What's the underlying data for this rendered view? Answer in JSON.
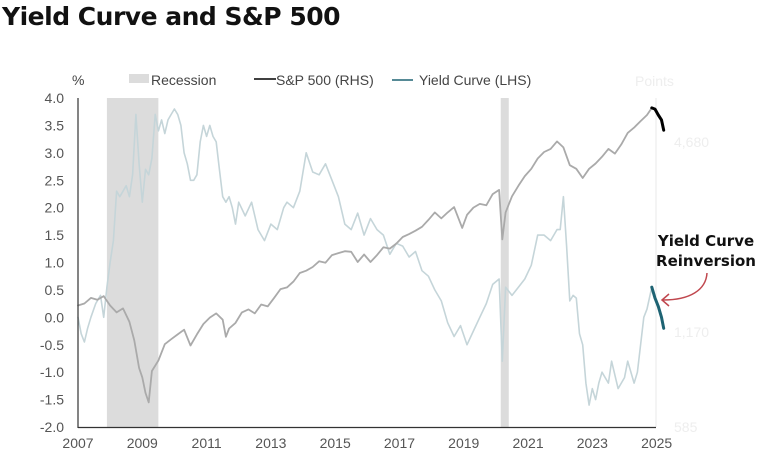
{
  "chart_data": {
    "type": "line",
    "title": "Yield Curve and S&P 500",
    "left_axis_unit": "%",
    "right_axis_unit": "Points",
    "ylim": [
      -2.0,
      4.0
    ],
    "yticks": [
      "4.0",
      "3.5",
      "3.0",
      "2.5",
      "2.0",
      "1.5",
      "1.0",
      "0.5",
      "0.0",
      "-0.5",
      "-1.0",
      "-1.5",
      "-2.0"
    ],
    "ytick_values": [
      4.0,
      3.5,
      3.0,
      2.5,
      2.0,
      1.5,
      1.0,
      0.5,
      0.0,
      -0.5,
      -1.0,
      -1.5,
      -2.0
    ],
    "y2ticks": [
      "4,680",
      "1,170",
      "585"
    ],
    "y2tick_values": [
      4680,
      1170,
      585
    ],
    "y2scale": "log",
    "xlim": [
      2007,
      2025.3
    ],
    "xticks": [
      "2007",
      "2009",
      "2011",
      "2013",
      "2015",
      "2017",
      "2019",
      "2021",
      "2023",
      "2025"
    ],
    "xtick_values": [
      2007,
      2009,
      2011,
      2013,
      2015,
      2017,
      2019,
      2021,
      2023,
      2025
    ],
    "legend": {
      "placement": "top",
      "recession": "Recession",
      "sp500": "S&P 500 (RHS)",
      "yield": "Yield Curve (LHS)"
    },
    "colors": {
      "recession": "#dcdcdc",
      "sp500_hist": "#aaaaaa",
      "sp500_recent": "#000000",
      "yield_hist": "#c5d5d9",
      "yield_recent": "#1e6373",
      "annotation_arrow": "#c0474e",
      "axis": "#333333"
    },
    "recessions": [
      [
        2007.9,
        2009.5
      ],
      [
        2020.15,
        2020.4
      ]
    ],
    "annotation": {
      "line1": "Yield Curve",
      "line2": "Reinversion"
    },
    "series": [
      {
        "name": "Yield Curve (LHS)",
        "axis": "left",
        "x": [
          2007.0,
          2007.1,
          2007.2,
          2007.3,
          2007.4,
          2007.55,
          2007.7,
          2007.8,
          2007.9,
          2008.0,
          2008.1,
          2008.2,
          2008.3,
          2008.4,
          2008.5,
          2008.6,
          2008.7,
          2008.8,
          2008.9,
          2009.0,
          2009.1,
          2009.2,
          2009.3,
          2009.4,
          2009.5,
          2009.6,
          2009.7,
          2009.8,
          2009.9,
          2010.0,
          2010.1,
          2010.2,
          2010.3,
          2010.4,
          2010.5,
          2010.6,
          2010.7,
          2010.8,
          2010.9,
          2011.0,
          2011.1,
          2011.2,
          2011.3,
          2011.4,
          2011.5,
          2011.6,
          2011.7,
          2011.8,
          2011.9,
          2012.0,
          2012.2,
          2012.4,
          2012.6,
          2012.8,
          2013.0,
          2013.2,
          2013.4,
          2013.5,
          2013.7,
          2013.9,
          2014.1,
          2014.3,
          2014.5,
          2014.7,
          2014.9,
          2015.1,
          2015.3,
          2015.5,
          2015.7,
          2015.9,
          2016.1,
          2016.3,
          2016.5,
          2016.7,
          2016.9,
          2017.1,
          2017.3,
          2017.5,
          2017.7,
          2017.9,
          2018.1,
          2018.3,
          2018.5,
          2018.7,
          2018.9,
          2019.1,
          2019.3,
          2019.5,
          2019.7,
          2019.9,
          2020.1,
          2020.2,
          2020.3,
          2020.5,
          2020.7,
          2020.9,
          2021.1,
          2021.3,
          2021.5,
          2021.7,
          2021.9,
          2022.0,
          2022.1,
          2022.2,
          2022.3,
          2022.4,
          2022.5,
          2022.6,
          2022.7,
          2022.8,
          2022.9,
          2023.0,
          2023.1,
          2023.2,
          2023.3,
          2023.5,
          2023.6,
          2023.8,
          2024.0,
          2024.1,
          2024.3,
          2024.4,
          2024.6,
          2024.7,
          2024.85
        ],
        "values": [
          0.0,
          -0.3,
          -0.45,
          -0.2,
          0.0,
          0.25,
          0.4,
          0.0,
          0.55,
          1.0,
          1.4,
          2.3,
          2.2,
          2.3,
          2.4,
          2.2,
          2.6,
          3.7,
          2.8,
          2.1,
          2.7,
          2.6,
          2.9,
          3.7,
          3.4,
          3.6,
          3.35,
          3.6,
          3.7,
          3.8,
          3.7,
          3.5,
          3.0,
          2.8,
          2.5,
          2.5,
          2.6,
          3.2,
          3.5,
          3.3,
          3.5,
          3.3,
          3.2,
          2.7,
          2.2,
          2.1,
          2.2,
          2.0,
          1.7,
          2.1,
          1.85,
          2.1,
          1.6,
          1.4,
          1.7,
          1.6,
          2.0,
          2.1,
          2.0,
          2.3,
          3.0,
          2.65,
          2.6,
          2.8,
          2.5,
          2.2,
          1.7,
          1.6,
          1.9,
          1.5,
          1.8,
          1.6,
          1.5,
          1.15,
          1.35,
          1.3,
          1.1,
          1.2,
          0.85,
          0.75,
          0.5,
          0.3,
          -0.1,
          -0.35,
          -0.15,
          -0.5,
          -0.25,
          0.0,
          0.25,
          0.6,
          0.7,
          -0.8,
          0.55,
          0.4,
          0.55,
          0.7,
          0.95,
          1.5,
          1.5,
          1.4,
          1.6,
          1.6,
          2.2,
          1.3,
          0.3,
          0.4,
          0.35,
          -0.3,
          -0.5,
          -1.2,
          -1.6,
          -1.3,
          -1.5,
          -1.2,
          -1.0,
          -1.2,
          -0.8,
          -1.3,
          -1.1,
          -0.8,
          -1.2,
          -1.0,
          0.0,
          0.15,
          0.55
        ],
        "recent_x": [
          2024.85,
          2024.95,
          2025.05,
          2025.15,
          2025.22
        ],
        "recent_values": [
          0.55,
          0.35,
          0.2,
          0.0,
          -0.2
        ]
      },
      {
        "name": "S&P 500 (RHS)",
        "axis": "right",
        "x": [
          2007.0,
          2007.2,
          2007.4,
          2007.6,
          2007.8,
          2008.0,
          2008.2,
          2008.4,
          2008.6,
          2008.75,
          2008.9,
          2009.0,
          2009.1,
          2009.2,
          2009.3,
          2009.5,
          2009.7,
          2009.9,
          2010.1,
          2010.3,
          2010.5,
          2010.7,
          2010.9,
          2011.1,
          2011.3,
          2011.5,
          2011.6,
          2011.7,
          2011.9,
          2012.1,
          2012.3,
          2012.5,
          2012.7,
          2012.9,
          2013.1,
          2013.3,
          2013.5,
          2013.7,
          2013.9,
          2014.1,
          2014.3,
          2014.5,
          2014.7,
          2014.9,
          2015.1,
          2015.3,
          2015.5,
          2015.7,
          2015.9,
          2016.1,
          2016.3,
          2016.5,
          2016.7,
          2016.9,
          2017.1,
          2017.3,
          2017.5,
          2017.7,
          2017.9,
          2018.1,
          2018.3,
          2018.5,
          2018.7,
          2018.95,
          2019.1,
          2019.3,
          2019.5,
          2019.7,
          2019.9,
          2020.1,
          2020.2,
          2020.3,
          2020.5,
          2020.7,
          2020.9,
          2021.1,
          2021.3,
          2021.5,
          2021.7,
          2021.9,
          2022.1,
          2022.3,
          2022.5,
          2022.7,
          2022.9,
          2023.1,
          2023.3,
          2023.5,
          2023.7,
          2023.9,
          2024.1,
          2024.3,
          2024.5,
          2024.7,
          2024.85
        ],
        "values": [
          1420,
          1440,
          1500,
          1480,
          1520,
          1420,
          1350,
          1390,
          1260,
          1100,
          900,
          840,
          750,
          700,
          880,
          950,
          1070,
          1110,
          1150,
          1190,
          1060,
          1150,
          1240,
          1300,
          1340,
          1280,
          1130,
          1200,
          1250,
          1350,
          1380,
          1340,
          1430,
          1410,
          1500,
          1600,
          1620,
          1690,
          1800,
          1830,
          1880,
          1960,
          1940,
          2050,
          2080,
          2110,
          2100,
          1950,
          2060,
          1950,
          2050,
          2170,
          2150,
          2230,
          2340,
          2390,
          2450,
          2520,
          2650,
          2800,
          2680,
          2800,
          2910,
          2500,
          2750,
          2900,
          2980,
          2950,
          3200,
          3300,
          2300,
          2800,
          3150,
          3400,
          3650,
          3850,
          4150,
          4350,
          4450,
          4700,
          4500,
          3950,
          3850,
          3600,
          3850,
          4000,
          4200,
          4450,
          4300,
          4600,
          5000,
          5200,
          5450,
          5700,
          6000
        ],
        "recent_x": [
          2024.85,
          2024.95,
          2025.05,
          2025.15,
          2025.22
        ],
        "recent_values": [
          6000,
          5950,
          5700,
          5500,
          5100
        ]
      }
    ]
  }
}
